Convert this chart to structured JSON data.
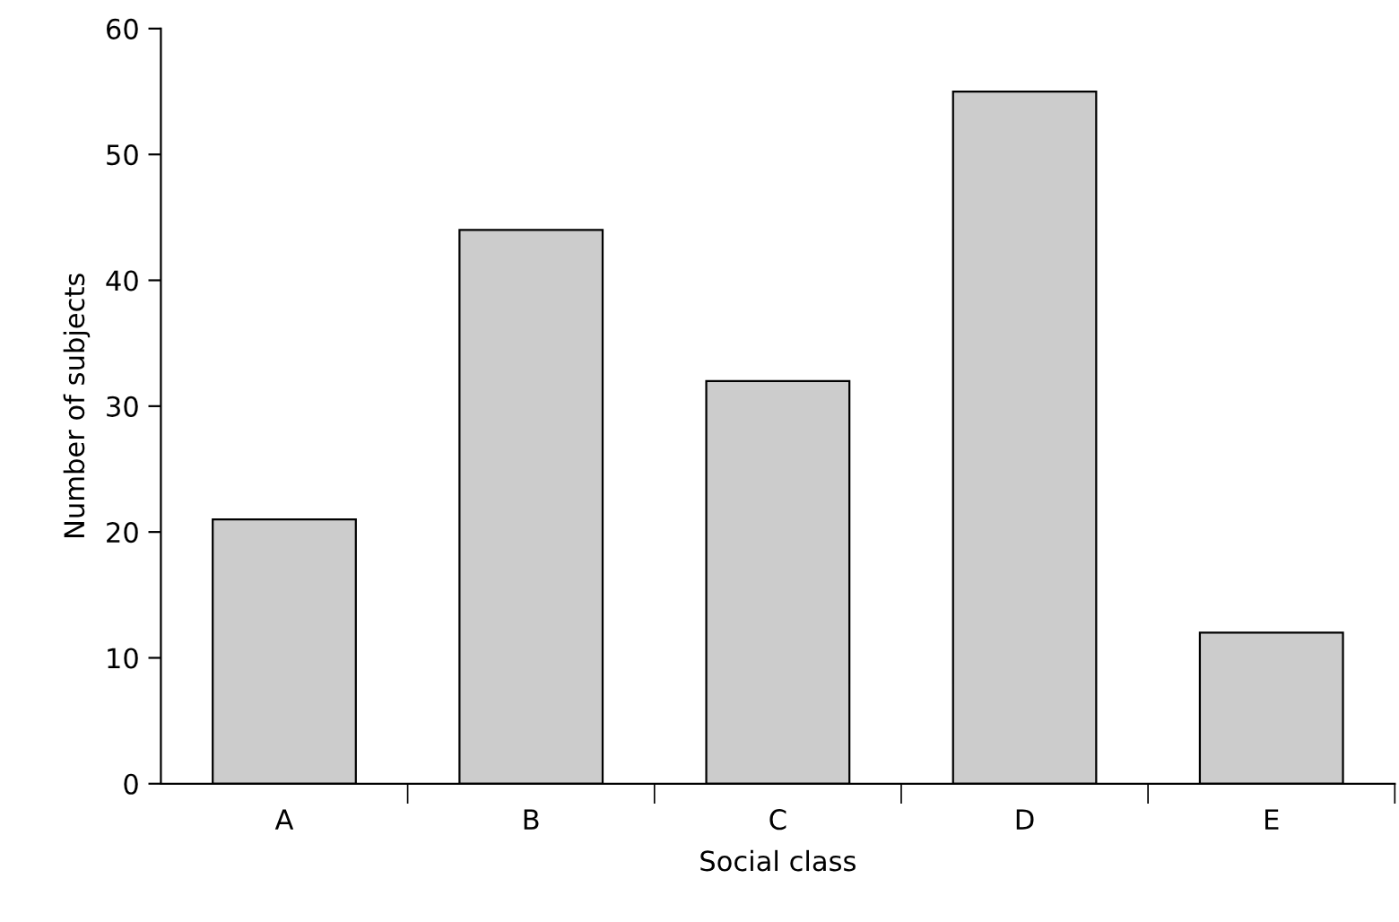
{
  "chart_data": {
    "type": "bar",
    "xlabel": "Social class",
    "ylabel": "Number of subjects",
    "categories": [
      "A",
      "B",
      "C",
      "D",
      "E"
    ],
    "values": [
      21,
      44,
      32,
      55,
      12
    ],
    "color": "#cccccc",
    "ylim": [
      0,
      60
    ],
    "yticks": [
      0,
      10,
      20,
      30,
      40,
      50,
      60
    ],
    "grid": false,
    "legend": false
  }
}
